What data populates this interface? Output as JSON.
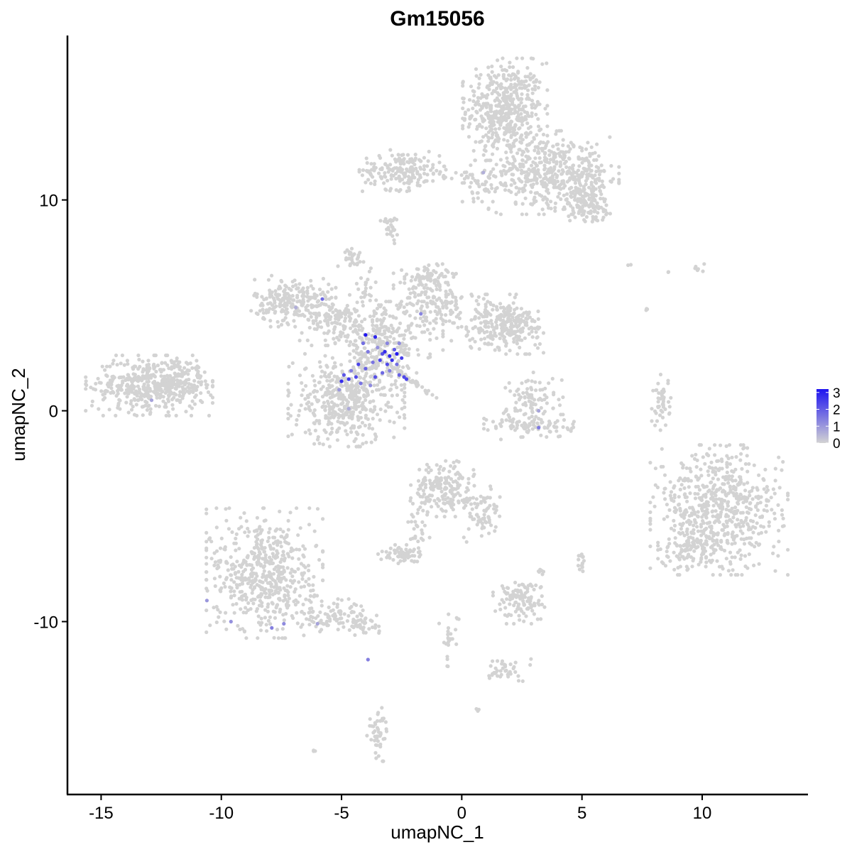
{
  "chart_data": {
    "type": "scatter",
    "title": "Gm15056",
    "xlabel": "umapNC_1",
    "ylabel": "umapNC_2",
    "xlim": [
      -16.4,
      14.4
    ],
    "ylim": [
      -18.2,
      17.8
    ],
    "x_ticks": [
      -15,
      -10,
      -5,
      0,
      5,
      10
    ],
    "x_tick_labels": [
      "-15",
      "-10",
      "-5",
      "0",
      "5",
      "10"
    ],
    "y_ticks": [
      -10,
      0,
      10
    ],
    "y_tick_labels": [
      "-10",
      "0",
      "10"
    ],
    "grid": false,
    "legend_position": "right",
    "color_scale": {
      "low_color": "#d3d3d3",
      "high_color": "#1e14f0",
      "min": 0,
      "max": 3.2
    },
    "legend_ticks": [
      "0",
      "1",
      "2",
      "3"
    ],
    "clusters": [
      {
        "x": 1.8,
        "y": 14.3,
        "sx": 0.8,
        "sy": 1.1,
        "n": 480
      },
      {
        "x": 3.2,
        "y": 11.3,
        "sx": 1.0,
        "sy": 0.9,
        "n": 320
      },
      {
        "x": 5.0,
        "y": 11.0,
        "sx": 0.7,
        "sy": 0.9,
        "n": 200
      },
      {
        "x": 5.2,
        "y": 9.7,
        "sx": 0.6,
        "sy": 0.4,
        "n": 80
      },
      {
        "x": -2.5,
        "y": 11.4,
        "sx": 0.8,
        "sy": 0.45,
        "n": 170
      },
      {
        "x": -0.5,
        "y": 11.2,
        "sx": 0.8,
        "sy": 0.18,
        "n": 30
      },
      {
        "x": 0.9,
        "y": 10.8,
        "sx": 0.5,
        "sy": 0.4,
        "n": 40
      },
      {
        "x": -13.0,
        "y": 1.2,
        "sx": 1.2,
        "sy": 0.65,
        "n": 420
      },
      {
        "x": -11.9,
        "y": 1.5,
        "sx": 0.6,
        "sy": 0.45,
        "n": 90
      },
      {
        "x": -7.0,
        "y": 5.2,
        "sx": 0.8,
        "sy": 0.55,
        "n": 230
      },
      {
        "x": -5.2,
        "y": 4.2,
        "sx": 0.7,
        "sy": 0.5,
        "n": 120
      },
      {
        "x": -4.8,
        "y": 0.5,
        "sx": 1.1,
        "sy": 1.0,
        "n": 460
      },
      {
        "x": -3.3,
        "y": 3.2,
        "sx": 0.9,
        "sy": 0.9,
        "n": 260
      },
      {
        "x": -1.3,
        "y": 5.2,
        "sx": 0.7,
        "sy": 0.8,
        "n": 170
      },
      {
        "x": 1.2,
        "y": 4.2,
        "sx": 0.9,
        "sy": 0.6,
        "n": 180
      },
      {
        "x": 2.3,
        "y": 3.9,
        "sx": 0.5,
        "sy": 0.55,
        "n": 110
      },
      {
        "x": -1.5,
        "y": 6.3,
        "sx": 0.4,
        "sy": 0.15,
        "n": 40
      },
      {
        "x": -4.6,
        "y": 7.3,
        "sx": 0.25,
        "sy": 0.2,
        "n": 30
      },
      {
        "x": -4.1,
        "y": 5.8,
        "sx": 0.3,
        "sy": 0.5,
        "n": 25
      },
      {
        "x": -2.9,
        "y": 8.6,
        "sx": 0.15,
        "sy": 0.3,
        "n": 18
      },
      {
        "x": 3.0,
        "y": 0.5,
        "sx": 0.55,
        "sy": 0.6,
        "n": 90
      },
      {
        "x": 2.9,
        "y": -0.7,
        "sx": 0.9,
        "sy": 0.3,
        "n": 90
      },
      {
        "x": 8.3,
        "y": 0.4,
        "sx": 0.18,
        "sy": 0.6,
        "n": 45
      },
      {
        "x": 10.7,
        "y": -4.7,
        "sx": 1.3,
        "sy": 1.4,
        "n": 620
      },
      {
        "x": 9.7,
        "y": -6.4,
        "sx": 0.7,
        "sy": 0.45,
        "n": 90
      },
      {
        "x": -0.8,
        "y": -3.7,
        "sx": 0.6,
        "sy": 0.6,
        "n": 190
      },
      {
        "x": 0.9,
        "y": -4.9,
        "sx": 0.4,
        "sy": 0.6,
        "n": 70
      },
      {
        "x": -1.8,
        "y": -5.4,
        "sx": 0.22,
        "sy": 0.8,
        "n": 30
      },
      {
        "x": -2.6,
        "y": -6.8,
        "sx": 0.4,
        "sy": 0.2,
        "n": 60
      },
      {
        "x": -8.2,
        "y": -7.7,
        "sx": 1.1,
        "sy": 1.4,
        "n": 560
      },
      {
        "x": -5.3,
        "y": -9.7,
        "sx": 0.8,
        "sy": 0.35,
        "n": 90
      },
      {
        "x": -4.2,
        "y": -10.2,
        "sx": 0.35,
        "sy": 0.2,
        "n": 30
      },
      {
        "x": 2.4,
        "y": -9.0,
        "sx": 0.5,
        "sy": 0.5,
        "n": 120
      },
      {
        "x": 5.0,
        "y": -7.2,
        "sx": 0.1,
        "sy": 0.25,
        "n": 15
      },
      {
        "x": 3.3,
        "y": -7.6,
        "sx": 0.1,
        "sy": 0.1,
        "n": 6
      },
      {
        "x": -0.5,
        "y": -10.8,
        "sx": 0.2,
        "sy": 0.6,
        "n": 25
      },
      {
        "x": 1.8,
        "y": -12.3,
        "sx": 0.5,
        "sy": 0.3,
        "n": 40
      },
      {
        "x": -3.5,
        "y": -15.3,
        "sx": 0.2,
        "sy": 0.6,
        "n": 45
      },
      {
        "x": 0.7,
        "y": -14.2,
        "sx": 0.05,
        "sy": 0.05,
        "n": 3
      },
      {
        "x": -6.1,
        "y": -16.1,
        "sx": 0.05,
        "sy": 0.05,
        "n": 3
      },
      {
        "x": 9.8,
        "y": 6.8,
        "sx": 0.2,
        "sy": 0.1,
        "n": 6
      },
      {
        "x": 7.0,
        "y": 6.9,
        "sx": 0.05,
        "sy": 0.05,
        "n": 2
      },
      {
        "x": 8.6,
        "y": 6.6,
        "sx": 0.05,
        "sy": 0.05,
        "n": 2
      },
      {
        "x": 7.7,
        "y": 4.8,
        "sx": 0.08,
        "sy": 0.1,
        "n": 3
      },
      {
        "x": -3.0,
        "y": 9.0,
        "sx": 0.2,
        "sy": 0.1,
        "n": 10
      }
    ],
    "expressing_points": [
      {
        "x": -4.0,
        "y": 3.6,
        "v": 3.2
      },
      {
        "x": -3.6,
        "y": 3.5,
        "v": 2.9
      },
      {
        "x": -3.2,
        "y": 2.8,
        "v": 2.8
      },
      {
        "x": -3.0,
        "y": 2.6,
        "v": 2.9
      },
      {
        "x": -2.7,
        "y": 2.7,
        "v": 3.1
      },
      {
        "x": -2.5,
        "y": 2.5,
        "v": 2.5
      },
      {
        "x": -2.9,
        "y": 2.4,
        "v": 2.7
      },
      {
        "x": -3.4,
        "y": 2.4,
        "v": 2.4
      },
      {
        "x": -3.1,
        "y": 2.2,
        "v": 2.3
      },
      {
        "x": -3.3,
        "y": 2.7,
        "v": 2.2
      },
      {
        "x": -2.8,
        "y": 2.9,
        "v": 2.0
      },
      {
        "x": -4.3,
        "y": 2.2,
        "v": 2.4
      },
      {
        "x": -4.0,
        "y": 2.0,
        "v": 1.9
      },
      {
        "x": -4.4,
        "y": 1.6,
        "v": 2.3
      },
      {
        "x": -4.7,
        "y": 1.5,
        "v": 2.6
      },
      {
        "x": -5.0,
        "y": 1.4,
        "v": 2.8
      },
      {
        "x": -4.9,
        "y": 1.7,
        "v": 2.1
      },
      {
        "x": -3.6,
        "y": 1.6,
        "v": 2.2
      },
      {
        "x": -3.3,
        "y": 1.8,
        "v": 1.8
      },
      {
        "x": -4.2,
        "y": 1.3,
        "v": 1.6
      },
      {
        "x": -2.4,
        "y": 1.6,
        "v": 2.3
      },
      {
        "x": -2.3,
        "y": 1.5,
        "v": 2.4
      },
      {
        "x": -2.6,
        "y": 1.7,
        "v": 1.9
      },
      {
        "x": -3.9,
        "y": 2.8,
        "v": 1.5
      },
      {
        "x": -4.1,
        "y": 3.2,
        "v": 1.7
      },
      {
        "x": -3.1,
        "y": 3.2,
        "v": 1.3
      },
      {
        "x": -2.6,
        "y": 3.2,
        "v": 1.2
      },
      {
        "x": -3.0,
        "y": 1.9,
        "v": 1.4
      },
      {
        "x": -3.7,
        "y": 2.3,
        "v": 1.6
      },
      {
        "x": -4.6,
        "y": 1.9,
        "v": 1.4
      },
      {
        "x": -2.7,
        "y": 2.2,
        "v": 1.7
      },
      {
        "x": -3.5,
        "y": 3.0,
        "v": 1.1
      },
      {
        "x": -5.8,
        "y": 5.3,
        "v": 1.8
      },
      {
        "x": -1.7,
        "y": 4.6,
        "v": 1.3
      },
      {
        "x": -5.1,
        "y": 1.0,
        "v": 1.0
      },
      {
        "x": -3.8,
        "y": 1.2,
        "v": 1.2
      },
      {
        "x": 3.2,
        "y": -0.8,
        "v": 1.5
      },
      {
        "x": 3.2,
        "y": 0.0,
        "v": 0.8
      },
      {
        "x": -12.9,
        "y": 0.5,
        "v": 0.8
      },
      {
        "x": 0.9,
        "y": 11.3,
        "v": 0.6
      },
      {
        "x": -10.6,
        "y": -9.0,
        "v": 1.0
      },
      {
        "x": -9.6,
        "y": -10.0,
        "v": 1.1
      },
      {
        "x": -7.9,
        "y": -10.3,
        "v": 1.4
      },
      {
        "x": -7.4,
        "y": -10.1,
        "v": 1.2
      },
      {
        "x": -6.0,
        "y": -10.1,
        "v": 0.8
      },
      {
        "x": -3.9,
        "y": -11.8,
        "v": 1.4
      },
      {
        "x": -4.7,
        "y": 0.1,
        "v": 0.7
      },
      {
        "x": -6.9,
        "y": 4.9,
        "v": 0.6
      }
    ],
    "streak": {
      "x0": -3.0,
      "y0": 2.2,
      "x1": -1.1,
      "y1": 0.6,
      "n": 40
    }
  }
}
